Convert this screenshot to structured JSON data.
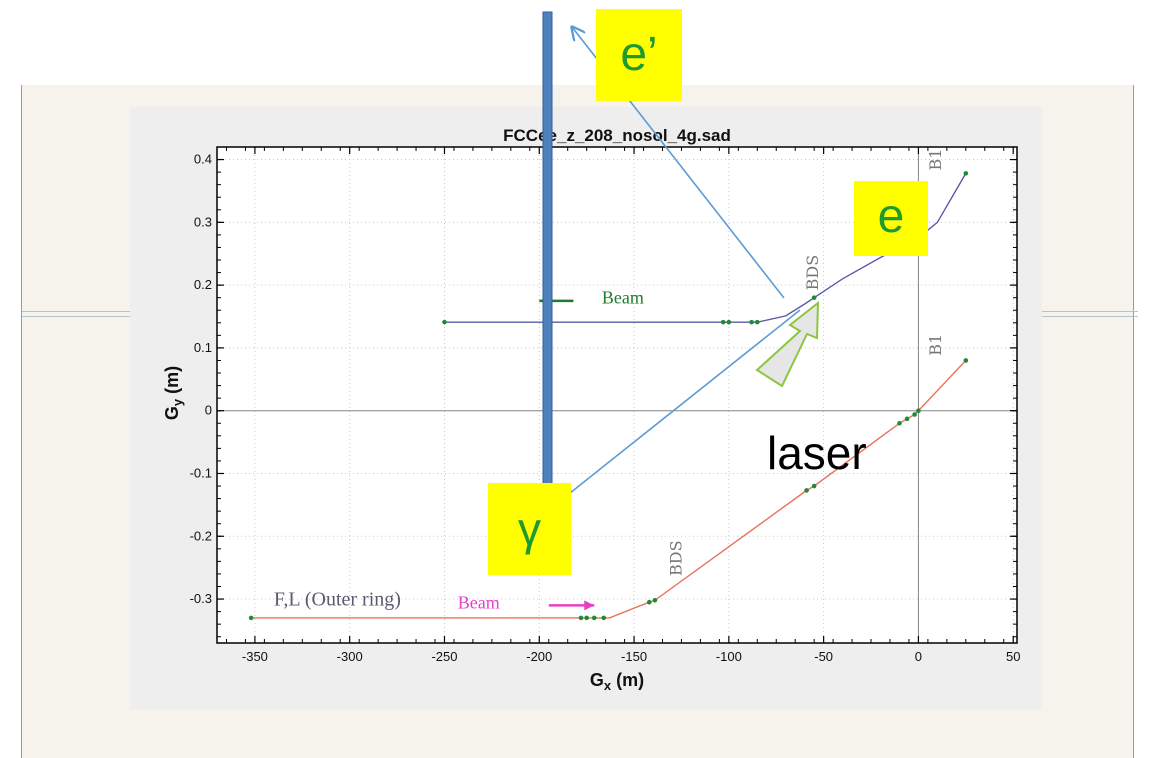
{
  "colors": {
    "slide_background": "#f6f3ec",
    "plot_card": "#eeeeee",
    "upper_beamline": "#5a5aa8",
    "lower_beamline": "#e8735a",
    "element_markers": "#1e8a3a",
    "beam_arrow_upper": "#1e7a2e",
    "beam_arrow_lower": "#e640c8",
    "overlay_lines": "#5b9bd5",
    "tag_background": "#ffff00",
    "tag_text": "#1f9a2f",
    "laser_arrow_fill": "#e6e6e6",
    "laser_arrow_stroke": "#8cc63f"
  },
  "chart_data": {
    "type": "line",
    "title": "FCCee_z_208_nosol_4g.sad",
    "xlabel": "G_x (m)",
    "ylabel": "G_y (m)",
    "xlim": [
      -370,
      52
    ],
    "ylim": [
      -0.37,
      0.42
    ],
    "x_ticks": [
      -350,
      -300,
      -250,
      -200,
      -150,
      -100,
      -50,
      0,
      50
    ],
    "y_ticks": [
      0.4,
      0.3,
      0.2,
      0.1,
      0,
      -0.1,
      -0.2,
      -0.3
    ],
    "x_tick_labels": [
      "-350",
      "-300",
      "-250",
      "-200",
      "-150",
      "-100",
      "-50",
      "0",
      "50"
    ],
    "y_tick_labels": [
      "0.4",
      "0.3",
      "0.2",
      "0.1",
      "0",
      "-0.1",
      "-0.2",
      "-0.3"
    ],
    "grid": true,
    "series": [
      {
        "x": [
          -250,
          -103,
          -100,
          -88,
          -85,
          -70,
          -60,
          -55,
          -40,
          -20,
          0,
          10,
          25
        ],
        "y": [
          0.141,
          0.141,
          0.141,
          0.141,
          0.141,
          0.151,
          0.17,
          0.18,
          0.21,
          0.244,
          0.275,
          0.3,
          0.378
        ]
      },
      {
        "x": [
          -352,
          -178,
          -175,
          -171,
          -166,
          -163,
          -142,
          -139,
          -59,
          -55,
          -10,
          -6,
          -2,
          0,
          25
        ],
        "y": [
          -0.33,
          -0.33,
          -0.33,
          -0.33,
          -0.33,
          -0.33,
          -0.305,
          -0.302,
          -0.127,
          -0.12,
          -0.02,
          -0.013,
          -0.006,
          0,
          0.08
        ]
      }
    ],
    "markers": [
      {
        "series": 0,
        "x": [
          -250,
          -103,
          -100,
          -88,
          -85,
          -55,
          25
        ]
      },
      {
        "series": 1,
        "x": [
          -352,
          -178,
          -175,
          -171,
          -166,
          -142,
          -139,
          -59,
          -55,
          -10,
          -6,
          -2,
          0,
          25
        ]
      }
    ],
    "annotations": [
      {
        "text": "BDS",
        "x": -53,
        "y": 0.22,
        "rotated": true
      },
      {
        "text": "B1",
        "x": 12,
        "y": 0.4,
        "rotated": true
      },
      {
        "text": "BDS",
        "x": -125,
        "y": -0.235,
        "rotated": true
      },
      {
        "text": "B1",
        "x": 12,
        "y": 0.105,
        "rotated": true
      },
      {
        "text": "Beam",
        "x": -167,
        "y": 0.171,
        "arrow_from": -182,
        "arrow_to": -200,
        "arrow_y": 0.175
      },
      {
        "text": "Beam",
        "x": -243,
        "y": -0.315,
        "arrow_from": -195,
        "arrow_to": -171,
        "arrow_y": -0.31
      },
      {
        "text": "F,L (Outer ring)",
        "x": -340,
        "y": -0.31
      }
    ]
  },
  "overlay": {
    "tags": [
      {
        "text": "e’"
      },
      {
        "text": "e"
      },
      {
        "text": "γ"
      }
    ],
    "laser_label": "laser"
  }
}
